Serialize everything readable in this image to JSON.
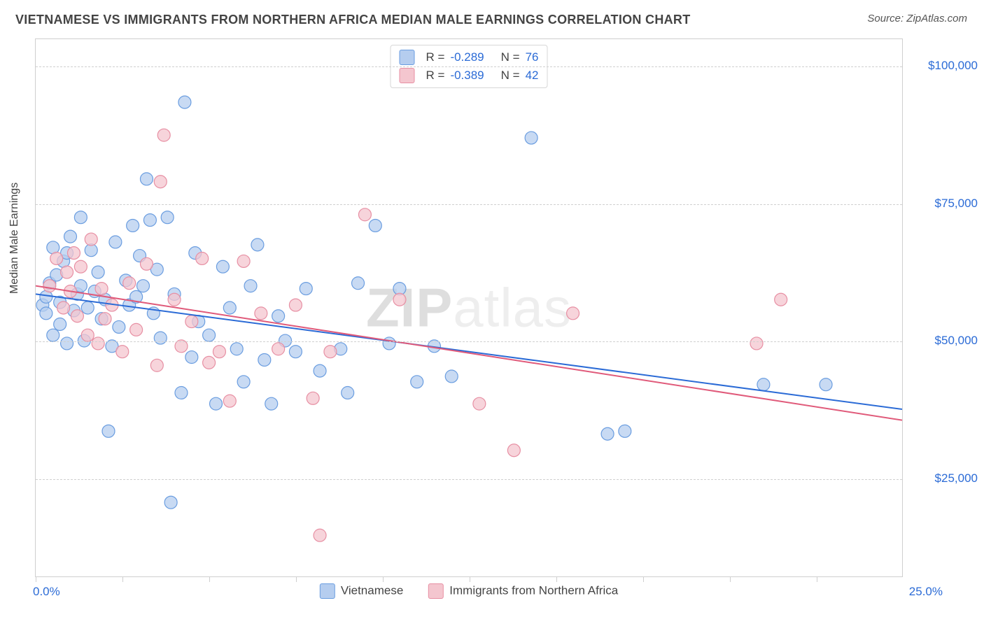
{
  "header": {
    "title": "VIETNAMESE VS IMMIGRANTS FROM NORTHERN AFRICA MEDIAN MALE EARNINGS CORRELATION CHART",
    "source_prefix": "Source: ",
    "source_name": "ZipAtlas.com"
  },
  "watermark": {
    "zip": "ZIP",
    "atlas": "atlas"
  },
  "chart": {
    "type": "scatter",
    "ylabel": "Median Male Earnings",
    "xlim": [
      0,
      25
    ],
    "ylim": [
      7000,
      105000
    ],
    "xtick_positions": [
      0,
      2.5,
      5,
      7.5,
      10,
      12.5,
      15,
      17.5,
      20,
      22.5
    ],
    "xtick_labels_visible": {
      "left": "0.0%",
      "right": "25.0%"
    },
    "ytick_positions": [
      25000,
      50000,
      75000,
      100000
    ],
    "ytick_labels": [
      "$25,000",
      "$50,000",
      "$75,000",
      "$100,000"
    ],
    "background_color": "#ffffff",
    "grid_color": "#d0d0d0",
    "axis_border_color": "#cfcfcf",
    "marker_radius": 9,
    "marker_stroke_width": 1.2,
    "trend_line_width": 2,
    "series": [
      {
        "name": "Vietnamese",
        "fill": "#b5cdef",
        "stroke": "#6a9de0",
        "line_color": "#2b6bd6",
        "R": "-0.289",
        "N": "76",
        "trend": {
          "x1": 0,
          "y1": 58500,
          "x2": 25,
          "y2": 37500
        },
        "points": [
          [
            0.2,
            56500
          ],
          [
            0.3,
            55000
          ],
          [
            0.3,
            58000
          ],
          [
            0.4,
            60500
          ],
          [
            0.5,
            51000
          ],
          [
            0.5,
            67000
          ],
          [
            0.6,
            62000
          ],
          [
            0.7,
            57000
          ],
          [
            0.7,
            53000
          ],
          [
            0.8,
            64500
          ],
          [
            0.9,
            66000
          ],
          [
            0.9,
            49500
          ],
          [
            1.0,
            69000
          ],
          [
            1.1,
            55500
          ],
          [
            1.2,
            58500
          ],
          [
            1.3,
            72500
          ],
          [
            1.3,
            60000
          ],
          [
            1.4,
            50000
          ],
          [
            1.5,
            56000
          ],
          [
            1.6,
            66500
          ],
          [
            1.7,
            59000
          ],
          [
            1.8,
            62500
          ],
          [
            1.9,
            54000
          ],
          [
            2.0,
            57500
          ],
          [
            2.1,
            33500
          ],
          [
            2.2,
            49000
          ],
          [
            2.3,
            68000
          ],
          [
            2.4,
            52500
          ],
          [
            2.6,
            61000
          ],
          [
            2.7,
            56500
          ],
          [
            2.8,
            71000
          ],
          [
            2.9,
            58000
          ],
          [
            3.0,
            65500
          ],
          [
            3.1,
            60000
          ],
          [
            3.2,
            79500
          ],
          [
            3.3,
            72000
          ],
          [
            3.4,
            55000
          ],
          [
            3.5,
            63000
          ],
          [
            3.6,
            50500
          ],
          [
            3.8,
            72500
          ],
          [
            3.9,
            20500
          ],
          [
            4.0,
            58500
          ],
          [
            4.2,
            40500
          ],
          [
            4.3,
            93500
          ],
          [
            4.5,
            47000
          ],
          [
            4.6,
            66000
          ],
          [
            4.7,
            53500
          ],
          [
            5.0,
            51000
          ],
          [
            5.2,
            38500
          ],
          [
            5.4,
            63500
          ],
          [
            5.6,
            56000
          ],
          [
            5.8,
            48500
          ],
          [
            6.0,
            42500
          ],
          [
            6.2,
            60000
          ],
          [
            6.4,
            67500
          ],
          [
            6.6,
            46500
          ],
          [
            6.8,
            38500
          ],
          [
            7.0,
            54500
          ],
          [
            7.2,
            50000
          ],
          [
            7.5,
            48000
          ],
          [
            7.8,
            59500
          ],
          [
            8.2,
            44500
          ],
          [
            8.8,
            48500
          ],
          [
            9.0,
            40500
          ],
          [
            9.3,
            60500
          ],
          [
            9.8,
            71000
          ],
          [
            10.2,
            49500
          ],
          [
            10.5,
            59500
          ],
          [
            11.0,
            42500
          ],
          [
            11.5,
            49000
          ],
          [
            12.0,
            43500
          ],
          [
            14.3,
            87000
          ],
          [
            16.5,
            33000
          ],
          [
            17.0,
            33500
          ],
          [
            21.0,
            42000
          ],
          [
            22.8,
            42000
          ]
        ]
      },
      {
        "name": "Immigrants from Northern Africa",
        "fill": "#f4c6cf",
        "stroke": "#e78fa3",
        "line_color": "#e05a7a",
        "R": "-0.389",
        "N": "42",
        "trend": {
          "x1": 0,
          "y1": 60000,
          "x2": 25,
          "y2": 35500
        },
        "points": [
          [
            0.4,
            60000
          ],
          [
            0.6,
            65000
          ],
          [
            0.8,
            56000
          ],
          [
            0.9,
            62500
          ],
          [
            1.0,
            59000
          ],
          [
            1.1,
            66000
          ],
          [
            1.2,
            54500
          ],
          [
            1.3,
            63500
          ],
          [
            1.5,
            51000
          ],
          [
            1.6,
            68500
          ],
          [
            1.8,
            49500
          ],
          [
            1.9,
            59500
          ],
          [
            2.0,
            54000
          ],
          [
            2.2,
            56500
          ],
          [
            2.5,
            48000
          ],
          [
            2.7,
            60500
          ],
          [
            2.9,
            52000
          ],
          [
            3.2,
            64000
          ],
          [
            3.5,
            45500
          ],
          [
            3.6,
            79000
          ],
          [
            3.7,
            87500
          ],
          [
            4.0,
            57500
          ],
          [
            4.2,
            49000
          ],
          [
            4.5,
            53500
          ],
          [
            4.8,
            65000
          ],
          [
            5.0,
            46000
          ],
          [
            5.3,
            48000
          ],
          [
            5.6,
            39000
          ],
          [
            6.0,
            64500
          ],
          [
            6.5,
            55000
          ],
          [
            7.0,
            48500
          ],
          [
            7.5,
            56500
          ],
          [
            8.0,
            39500
          ],
          [
            8.2,
            14500
          ],
          [
            8.5,
            48000
          ],
          [
            9.5,
            73000
          ],
          [
            10.5,
            57500
          ],
          [
            12.8,
            38500
          ],
          [
            13.8,
            30000
          ],
          [
            15.5,
            55000
          ],
          [
            20.8,
            49500
          ],
          [
            21.5,
            57500
          ]
        ]
      }
    ],
    "legend_bottom": [
      {
        "label": "Vietnamese",
        "fill": "#b5cdef",
        "stroke": "#6a9de0"
      },
      {
        "label": "Immigrants from Northern Africa",
        "fill": "#f4c6cf",
        "stroke": "#e78fa3"
      }
    ]
  }
}
